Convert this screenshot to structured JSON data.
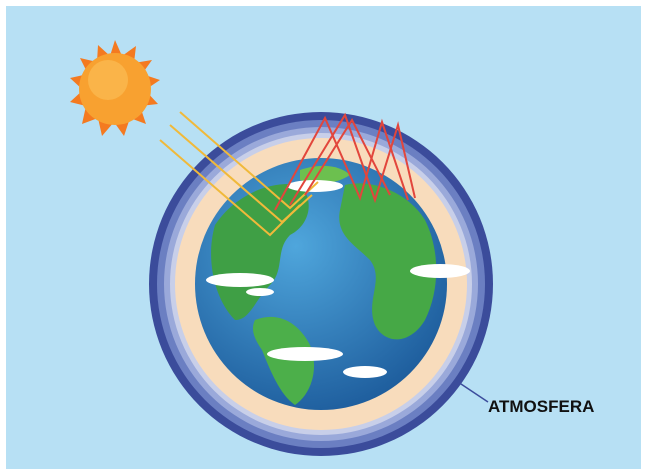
{
  "label": "ATMOSFERA"
}
